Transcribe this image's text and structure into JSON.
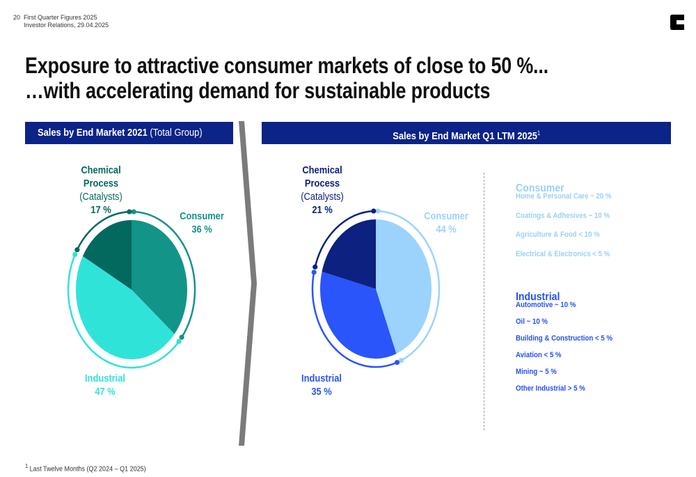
{
  "header": {
    "page_number": "20",
    "report_title": "First Quarter Figures 2025",
    "subtitle": "Investor Relations, 29.04.2025"
  },
  "title": {
    "line1": "Exposure to attractive consumer markets of close to 50 %...",
    "line2": "…with accelerating demand for sustainable products"
  },
  "left_panel": {
    "heading_bold": "Sales by End Market 2021",
    "heading_regular": " (Total Group)"
  },
  "right_panel": {
    "heading_bold": "Sales by End Market Q1 LTM 2025",
    "heading_sup": "1"
  },
  "chart_data": [
    {
      "type": "pie",
      "title": "Sales by End Market 2021 (Total Group)",
      "slices": [
        {
          "label": "Consumer",
          "value": 36,
          "display": "36 %",
          "color": "#139488"
        },
        {
          "label": "Industrial",
          "value": 47,
          "display": "47 %",
          "color": "#30e3d8"
        },
        {
          "label": "Chemical Process",
          "sublabel": "(Catalysts)",
          "value": 17,
          "display": "17 %",
          "color": "#03695f"
        }
      ]
    },
    {
      "type": "pie",
      "title": "Sales by End Market Q1 LTM 2025",
      "slices": [
        {
          "label": "Consumer",
          "value": 44,
          "display": "44 %",
          "color": "#9bd3fd"
        },
        {
          "label": "Industrial",
          "value": 35,
          "display": "35 %",
          "color": "#2a55fa"
        },
        {
          "label": "Chemical Process",
          "sublabel": "(Catalysts)",
          "value": 21,
          "display": "21 %",
          "color": "#0c2180"
        }
      ]
    }
  ],
  "legend": {
    "consumer": {
      "heading": "Consumer",
      "color": "#9bd0f5",
      "items": [
        "Home & Personal Care ~ 20 %",
        "Coatings & Adhesives ~ 10 %",
        "Agriculture & Food < 10 %",
        "Electrical & Electronics < 5 %"
      ]
    },
    "industrial": {
      "heading": "Industrial",
      "color": "#2550f0",
      "items": [
        "Automotive ~ 10 %",
        "Oil ~ 10 %",
        "Building & Construction < 5 %",
        "Aviation < 5 %",
        "Mining ~ 5 %",
        "Other Industrial > 5 %"
      ]
    }
  },
  "footnote": {
    "sup": "1",
    "text": " Last Twelve Months (Q2 2024 – Q1 2025)"
  }
}
